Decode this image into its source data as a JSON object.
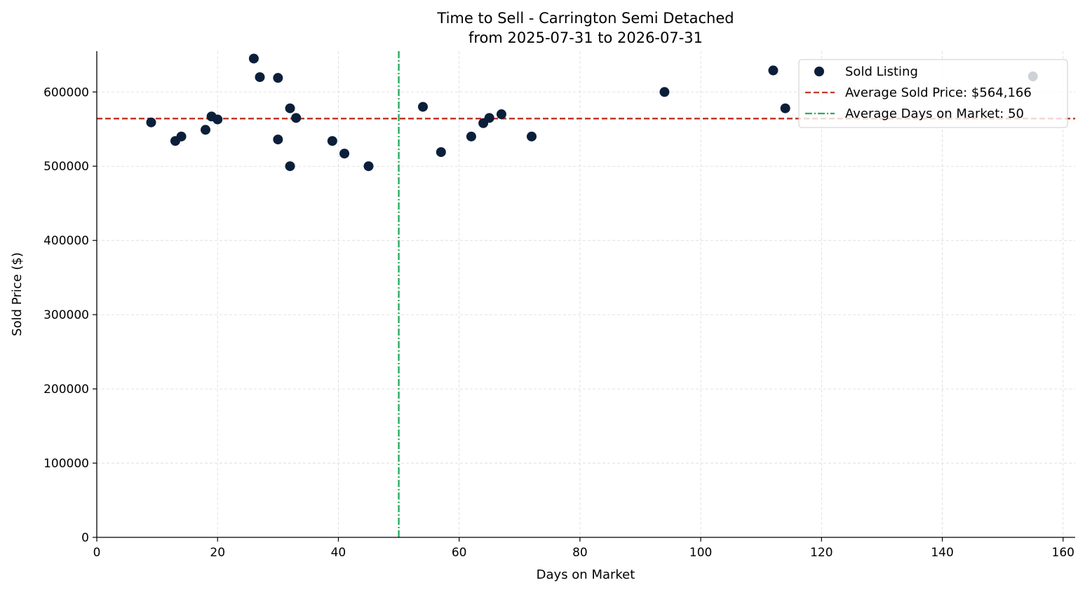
{
  "chart_data": {
    "type": "scatter",
    "title": "Time to Sell - Carrington Semi Detached",
    "subtitle": "from 2025-07-31 to 2026-07-31",
    "xlabel": "Days on Market",
    "ylabel": "Sold Price ($)",
    "xlim": [
      0,
      162
    ],
    "ylim": [
      0,
      655000
    ],
    "x_ticks": [
      0,
      20,
      40,
      60,
      80,
      100,
      120,
      140,
      160
    ],
    "y_ticks": [
      0,
      100000,
      200000,
      300000,
      400000,
      500000,
      600000
    ],
    "grid": true,
    "legend_position": "top-right",
    "series": [
      {
        "name": "Sold Listing",
        "color": "#0b1f3a",
        "points": [
          {
            "x": 9,
            "y": 559000
          },
          {
            "x": 13,
            "y": 534000
          },
          {
            "x": 14,
            "y": 540000
          },
          {
            "x": 18,
            "y": 549000
          },
          {
            "x": 19,
            "y": 567000
          },
          {
            "x": 20,
            "y": 563000
          },
          {
            "x": 26,
            "y": 645000
          },
          {
            "x": 27,
            "y": 620000
          },
          {
            "x": 30,
            "y": 619000
          },
          {
            "x": 30,
            "y": 536000
          },
          {
            "x": 32,
            "y": 578000
          },
          {
            "x": 32,
            "y": 500000
          },
          {
            "x": 33,
            "y": 565000
          },
          {
            "x": 39,
            "y": 534000
          },
          {
            "x": 41,
            "y": 517000
          },
          {
            "x": 45,
            "y": 500000
          },
          {
            "x": 54,
            "y": 580000
          },
          {
            "x": 57,
            "y": 519000
          },
          {
            "x": 62,
            "y": 540000
          },
          {
            "x": 64,
            "y": 558000
          },
          {
            "x": 65,
            "y": 565000
          },
          {
            "x": 67,
            "y": 570000
          },
          {
            "x": 72,
            "y": 540000
          },
          {
            "x": 94,
            "y": 600000
          },
          {
            "x": 112,
            "y": 629000
          },
          {
            "x": 114,
            "y": 578000
          },
          {
            "x": 155,
            "y": 621000
          }
        ]
      }
    ],
    "reference_lines": [
      {
        "orientation": "horizontal",
        "value": 564166,
        "label": "Average Sold Price: $564,166",
        "color": "#c0392b",
        "style": "dashed"
      },
      {
        "orientation": "vertical",
        "value": 50,
        "label": "Average Days on Market: 50",
        "color": "#27ae60",
        "style": "dashdot"
      }
    ]
  }
}
